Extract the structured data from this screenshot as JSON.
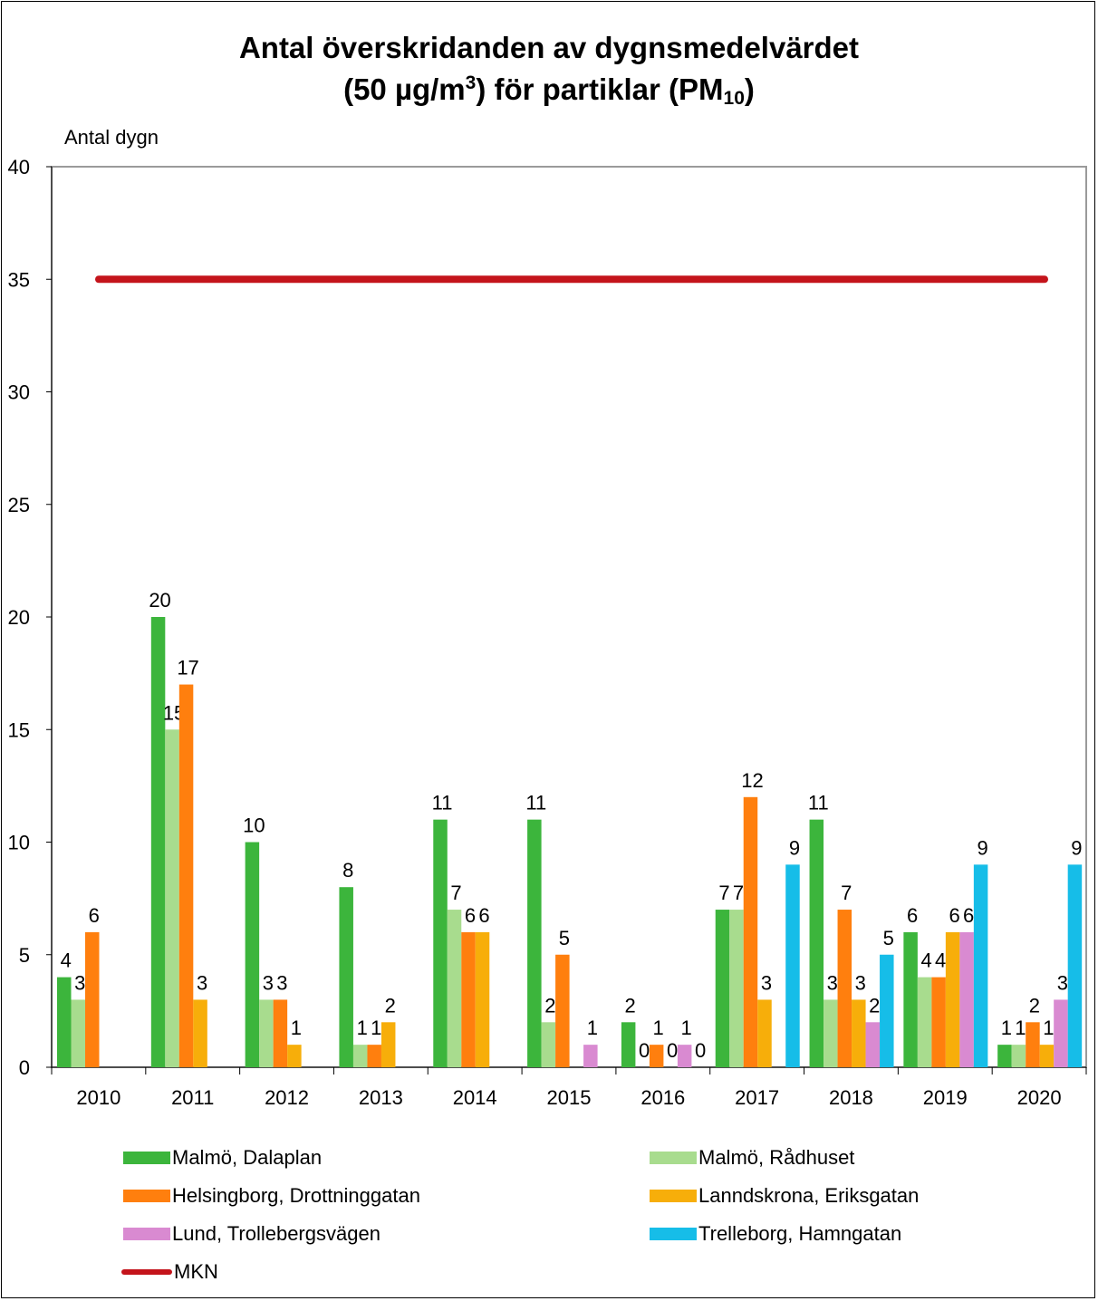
{
  "title": {
    "line1": "Antal överskridanden av dygnsmedelvärdet",
    "line2_pre": "(50 µg/m",
    "line2_sup": "3",
    "line2_mid": ") för partiklar (PM",
    "line2_sub": "10",
    "line2_post": ")"
  },
  "chart_data": {
    "type": "bar",
    "ylabel": "Antal dygn",
    "xlabel": "",
    "ylim": [
      0,
      40
    ],
    "yticks": [
      0,
      5,
      10,
      15,
      20,
      25,
      30,
      35,
      40
    ],
    "grid": false,
    "legend_position": "bottom",
    "categories": [
      "2010",
      "2011",
      "2012",
      "2013",
      "2014",
      "2015",
      "2016",
      "2017",
      "2018",
      "2019",
      "2020"
    ],
    "series": [
      {
        "name": "Malmö, Dalaplan",
        "color": "#3cb53c",
        "values": [
          4,
          20,
          10,
          8,
          11,
          11,
          2,
          7,
          11,
          6,
          1
        ]
      },
      {
        "name": "Malmö, Rådhuset",
        "color": "#a8dc8e",
        "values": [
          3,
          15,
          3,
          1,
          7,
          2,
          0,
          7,
          3,
          4,
          1
        ]
      },
      {
        "name": "Helsingborg, Drottninggatan",
        "color": "#ff7f0e",
        "values": [
          6,
          17,
          3,
          1,
          6,
          5,
          1,
          12,
          7,
          4,
          2
        ]
      },
      {
        "name": "Lanndskrona, Eriksgatan",
        "color": "#f7ae0a",
        "values": [
          null,
          3,
          1,
          2,
          6,
          null,
          0,
          3,
          3,
          6,
          1
        ]
      },
      {
        "name": "Lund, Trollebergsvägen",
        "color": "#d98ad1",
        "values": [
          null,
          null,
          null,
          null,
          null,
          1,
          1,
          null,
          2,
          6,
          3
        ]
      },
      {
        "name": "Trelleborg, Hamngatan",
        "color": "#16bde8",
        "values": [
          null,
          null,
          null,
          null,
          null,
          null,
          0,
          9,
          5,
          9,
          9
        ]
      }
    ],
    "reference_line": {
      "name": "MKN",
      "value": 35,
      "color": "#c4141b"
    }
  }
}
